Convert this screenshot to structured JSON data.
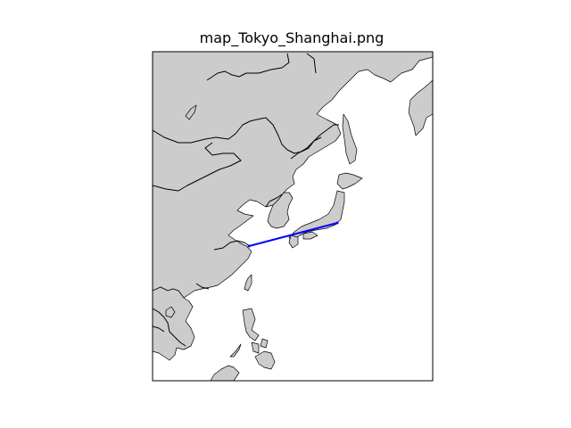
{
  "title": "map_Tokyo_Shanghai.png",
  "colors": {
    "land": "#cccccc",
    "ocean": "#ffffff",
    "coastline": "#000000",
    "route": "#0000ff"
  }
}
